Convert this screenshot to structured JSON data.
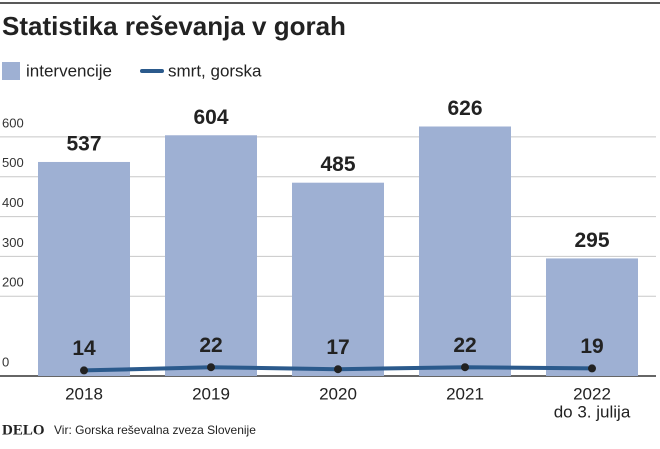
{
  "brand": "DELO",
  "chart_data": {
    "type": "bar-line",
    "title": "Statistika reševanja v gorah",
    "source": "Vir: Gorska reševalna zveza Slovenije",
    "categories": [
      "2018",
      "2019",
      "2020",
      "2021",
      "2022"
    ],
    "x_sublabels": [
      null,
      null,
      null,
      null,
      "do 3. julija"
    ],
    "series": [
      {
        "name": "intervencije",
        "color": "#9eb0d3",
        "type": "bar",
        "values": [
          537,
          604,
          485,
          626,
          295
        ]
      },
      {
        "name": "smrt, gorska",
        "color": "#2b5a8c",
        "type": "line",
        "values": [
          14,
          22,
          17,
          22,
          19
        ]
      }
    ],
    "ylim": [
      0,
      700
    ],
    "yticks": [
      0,
      200,
      300,
      400,
      500,
      600
    ],
    "grid": true
  }
}
